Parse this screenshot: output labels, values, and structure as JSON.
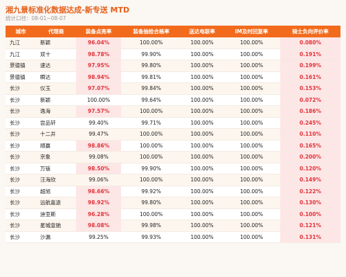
{
  "header": {
    "title": "湘九景标准化数据达成-新专送 MTD",
    "subtitle": "统计口径：08-01~08-07"
  },
  "table": {
    "columns": [
      "城市",
      "代理商",
      "装备点亮率",
      "装备抽检合格率",
      "送达电联率",
      "IM及时回复率",
      "骑士负向评价率"
    ],
    "rows": [
      [
        "九江",
        "新颖",
        "96.04%",
        "100.00%",
        "100.00%",
        "100.00%",
        "0.080%"
      ],
      [
        "九江",
        "双十",
        "98.78%",
        "99.90%",
        "100.00%",
        "100.00%",
        "0.191%"
      ],
      [
        "景德镇",
        "速达",
        "97.95%",
        "99.80%",
        "100.00%",
        "100.00%",
        "0.199%"
      ],
      [
        "景德镇",
        "瞬达",
        "98.94%",
        "99.81%",
        "100.00%",
        "100.00%",
        "0.161%"
      ],
      [
        "长沙",
        "仪玉",
        "97.07%",
        "99.84%",
        "100.00%",
        "100.00%",
        "0.153%"
      ],
      [
        "长沙",
        "新颖",
        "100.00%",
        "99.64%",
        "100.00%",
        "100.00%",
        "0.072%"
      ],
      [
        "长沙",
        "逸海",
        "97.57%",
        "100.00%",
        "100.00%",
        "100.00%",
        "0.186%"
      ],
      [
        "长沙",
        "尝品轩",
        "99.40%",
        "99.71%",
        "100.00%",
        "100.00%",
        "0.245%"
      ],
      [
        "长沙",
        "十二井",
        "99.47%",
        "100.00%",
        "100.00%",
        "100.00%",
        "0.110%"
      ],
      [
        "长沙",
        "顺赢",
        "98.86%",
        "100.00%",
        "100.00%",
        "100.00%",
        "0.165%"
      ],
      [
        "长沙",
        "京象",
        "99.08%",
        "100.00%",
        "100.00%",
        "100.00%",
        "0.200%"
      ],
      [
        "长沙",
        "万钣",
        "98.50%",
        "99.90%",
        "100.00%",
        "100.00%",
        "0.120%"
      ],
      [
        "长沙",
        "汪海欣",
        "99.06%",
        "100.00%",
        "100.00%",
        "100.00%",
        "0.149%"
      ],
      [
        "长沙",
        "超旭",
        "98.66%",
        "99.92%",
        "100.00%",
        "100.00%",
        "0.122%"
      ],
      [
        "长沙",
        "远航嘉途",
        "98.92%",
        "99.80%",
        "100.00%",
        "100.00%",
        "0.130%"
      ],
      [
        "长沙",
        "迪亚斯",
        "96.28%",
        "100.00%",
        "100.00%",
        "100.00%",
        "0.100%"
      ],
      [
        "长沙",
        "星城壹驰",
        "98.08%",
        "99.98%",
        "100.00%",
        "100.00%",
        "0.121%"
      ],
      [
        "长沙",
        "沙漏",
        "99.25%",
        "99.93%",
        "100.00%",
        "100.00%",
        "0.131%"
      ]
    ],
    "alert_color": "#e0353b",
    "alert_cells": [
      [
        0,
        2
      ],
      [
        1,
        2
      ],
      [
        2,
        2
      ],
      [
        3,
        2
      ],
      [
        4,
        2
      ],
      [
        6,
        2
      ],
      [
        9,
        2
      ],
      [
        11,
        2
      ],
      [
        13,
        2
      ],
      [
        14,
        2
      ],
      [
        15,
        2
      ],
      [
        16,
        2
      ],
      [
        0,
        6
      ],
      [
        1,
        6
      ],
      [
        2,
        6
      ],
      [
        3,
        6
      ],
      [
        4,
        6
      ],
      [
        5,
        6
      ],
      [
        6,
        6
      ],
      [
        7,
        6
      ],
      [
        8,
        6
      ],
      [
        9,
        6
      ],
      [
        10,
        6
      ],
      [
        11,
        6
      ],
      [
        12,
        6
      ],
      [
        13,
        6
      ],
      [
        14,
        6
      ],
      [
        15,
        6
      ],
      [
        16,
        6
      ],
      [
        17,
        6
      ]
    ]
  }
}
